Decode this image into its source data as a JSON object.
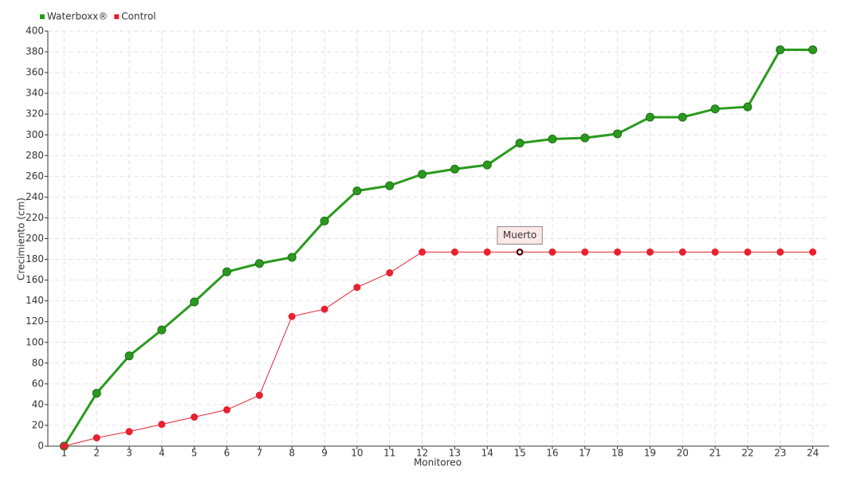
{
  "chart_data": {
    "type": "line",
    "x_label": "Monitoreo",
    "y_label": "Crecimiento (cm)",
    "categories": [
      "1",
      "2",
      "3",
      "4",
      "5",
      "6",
      "7",
      "8",
      "9",
      "10",
      "11",
      "12",
      "13",
      "14",
      "15",
      "16",
      "17",
      "18",
      "19",
      "20",
      "21",
      "22",
      "23",
      "24"
    ],
    "series": [
      {
        "name": "Waterboxx®",
        "color": "#2a9a1e",
        "values": [
          0,
          51,
          87,
          112,
          139,
          168,
          176,
          182,
          217,
          246,
          251,
          262,
          267,
          271,
          292,
          296,
          297,
          301,
          317,
          317,
          325,
          327,
          382,
          382
        ]
      },
      {
        "name": "Control",
        "color": "#e8202f",
        "values": [
          0,
          8,
          14,
          21,
          28,
          35,
          49,
          125,
          132,
          153,
          167,
          187,
          187,
          187,
          187,
          187,
          187,
          187,
          187,
          187,
          187,
          187,
          187,
          187
        ]
      }
    ],
    "annotations": [
      {
        "text": "Muerto",
        "x": "15",
        "series": "Control"
      }
    ],
    "ylim": [
      0,
      400
    ],
    "yticks": [
      0,
      20,
      40,
      60,
      80,
      100,
      120,
      140,
      160,
      180,
      200,
      220,
      240,
      260,
      280,
      300,
      320,
      340,
      360,
      380,
      400
    ],
    "grid": true,
    "legend": "top-left"
  }
}
